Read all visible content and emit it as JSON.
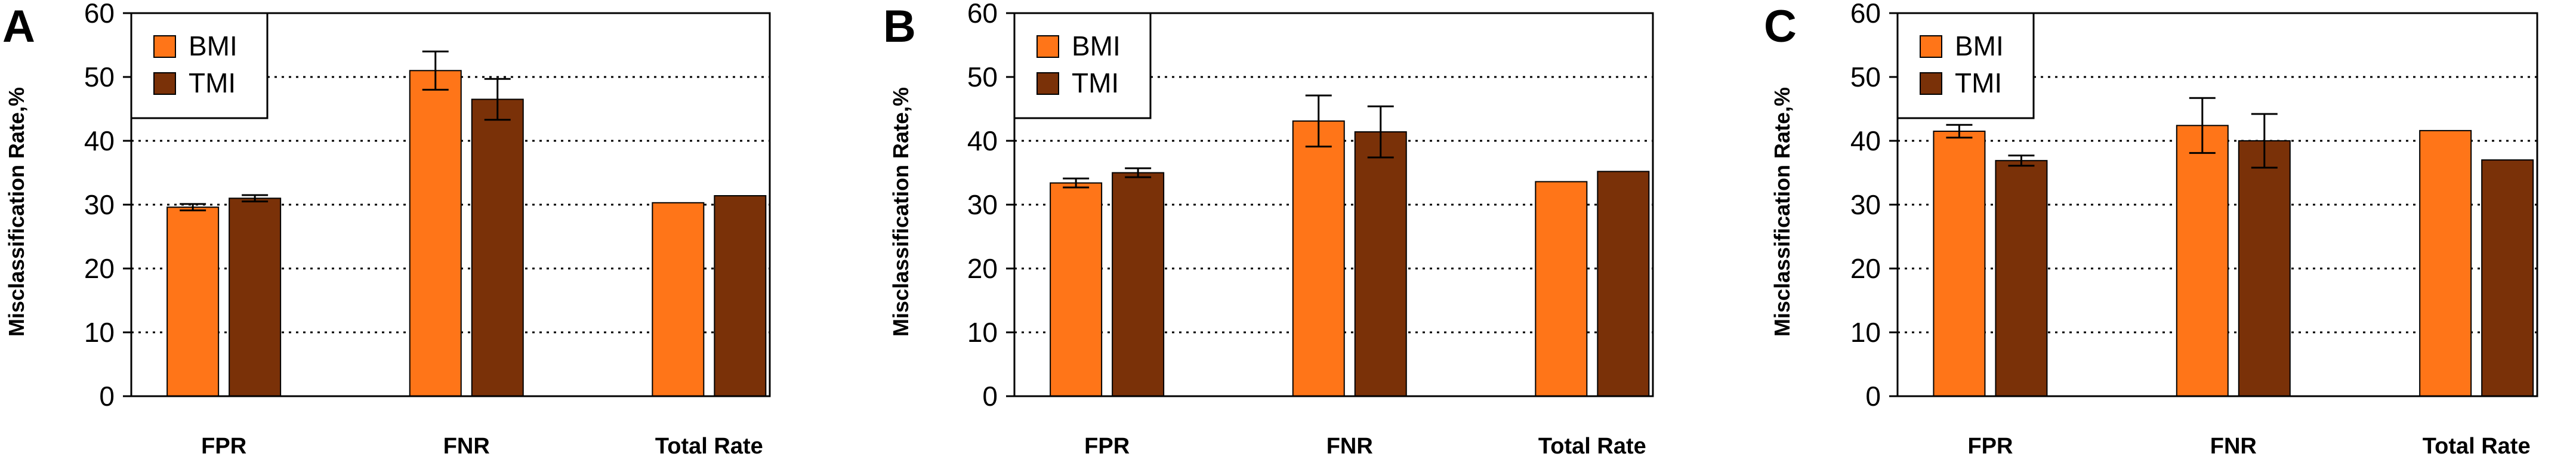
{
  "colors": {
    "BMI": "#ff7518",
    "TMI": "#7a3108",
    "border": "#000000",
    "grid": "#000000"
  },
  "chart_data": [
    {
      "panel": "A",
      "type": "bar",
      "categories": [
        "FPR",
        "FNR",
        "Total Rate"
      ],
      "series": [
        {
          "name": "BMI",
          "values": [
            29.6,
            51.0,
            30.3
          ],
          "errors": [
            0.5,
            3.0,
            null
          ]
        },
        {
          "name": "TMI",
          "values": [
            31.0,
            46.5,
            31.4
          ],
          "errors": [
            0.5,
            3.2,
            null
          ]
        }
      ],
      "ylabel": "Misclassification Rate,%",
      "ylim": [
        0,
        60
      ],
      "yticks": [
        0,
        10,
        20,
        30,
        40,
        50,
        60
      ],
      "grid": "horizontal dotted",
      "legend": "top-left"
    },
    {
      "panel": "B",
      "type": "bar",
      "categories": [
        "FPR",
        "FNR",
        "Total Rate"
      ],
      "series": [
        {
          "name": "BMI",
          "values": [
            33.4,
            43.1,
            33.6
          ],
          "errors": [
            0.7,
            4.0,
            null
          ]
        },
        {
          "name": "TMI",
          "values": [
            35.0,
            41.4,
            35.2
          ],
          "errors": [
            0.7,
            4.0,
            null
          ]
        }
      ],
      "ylabel": "Misclassification Rate,%",
      "ylim": [
        0,
        60
      ],
      "yticks": [
        0,
        10,
        20,
        30,
        40,
        50,
        60
      ],
      "grid": "horizontal dotted",
      "legend": "top-left"
    },
    {
      "panel": "C",
      "type": "bar",
      "categories": [
        "FPR",
        "FNR",
        "Total Rate"
      ],
      "series": [
        {
          "name": "BMI",
          "values": [
            41.5,
            42.4,
            41.6
          ],
          "errors": [
            1.0,
            4.3,
            null
          ]
        },
        {
          "name": "TMI",
          "values": [
            36.9,
            40.0,
            37.0
          ],
          "errors": [
            0.8,
            4.2,
            null
          ]
        }
      ],
      "ylabel": "Misclassification Rate,%",
      "ylim": [
        0,
        60
      ],
      "yticks": [
        0,
        10,
        20,
        30,
        40,
        50,
        60
      ],
      "grid": "horizontal dotted",
      "legend": "top-left"
    }
  ]
}
